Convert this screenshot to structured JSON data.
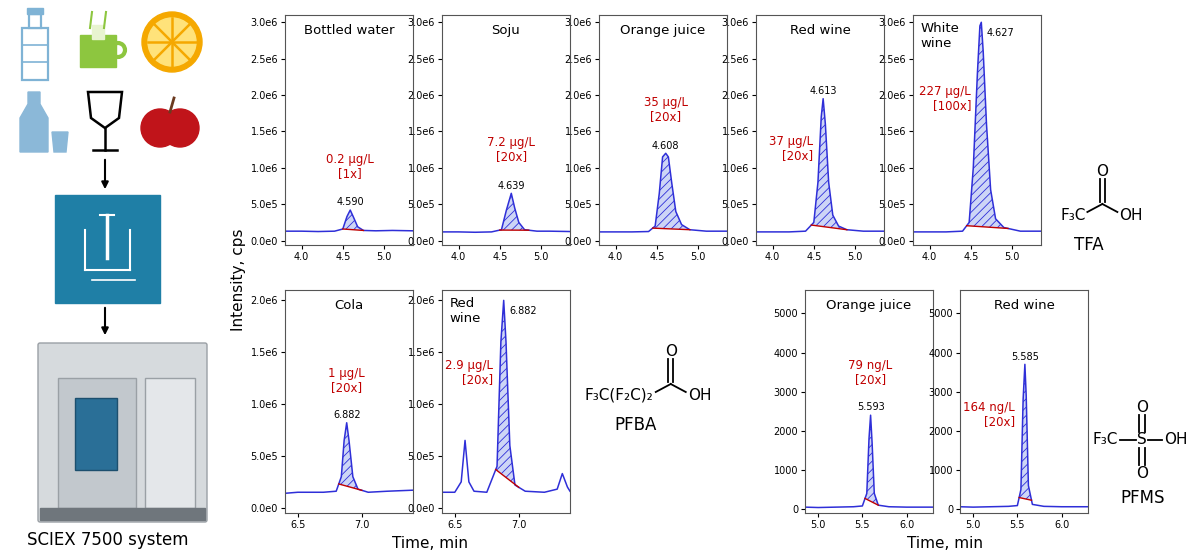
{
  "figure": {
    "ylabel": "Intensity, cps",
    "xlabels": [
      "Time, min",
      "Time, min"
    ],
    "system": "SCIEX 7500 system"
  },
  "compounds": [
    {
      "name": "TFA",
      "left": "F₃C",
      "oxo": [
        "O"
      ],
      "acid": "OH"
    },
    {
      "name": "PFBA",
      "left": "F₃C(F₂C)₂",
      "oxo": [
        "O"
      ],
      "acid": "OH"
    },
    {
      "name": "PFMS",
      "left": "F₃C",
      "center": "S",
      "oxo": [
        "O",
        "O"
      ],
      "acid": "OH"
    }
  ],
  "chart_data": [
    {
      "type": "line",
      "title": "Bottled water",
      "annotation": "0.2 µg/L",
      "factor": "[1x]",
      "peak_label": "4.590",
      "color": "#2f2fd8",
      "x": [
        3.8,
        4.0,
        4.2,
        4.4,
        4.5,
        4.55,
        4.59,
        4.63,
        4.68,
        4.75,
        4.9,
        5.1,
        5.35
      ],
      "values": [
        130000,
        130000,
        125000,
        130000,
        160000,
        330000,
        420000,
        320000,
        190000,
        140000,
        135000,
        140000,
        135000
      ],
      "integration": [
        4.5,
        4.75
      ],
      "xlim": [
        3.8,
        5.35
      ],
      "xticks": [
        4.0,
        4.5,
        5.0
      ],
      "ylim": [
        -60000,
        3100000
      ],
      "yticks": [
        {
          "value": 0,
          "label": "0.0e0"
        },
        {
          "value": 500000,
          "label": "5.0e5"
        },
        {
          "value": 1000000,
          "label": "1.0e6"
        },
        {
          "value": 1500000,
          "label": "1.5e6"
        },
        {
          "value": 2000000,
          "label": "2.0e6"
        },
        {
          "value": 2500000,
          "label": "2.5e6"
        },
        {
          "value": 3000000,
          "label": "3.0e6"
        }
      ]
    },
    {
      "type": "line",
      "title": "Soju",
      "annotation": "7.2 µg/L",
      "factor": "[20x]",
      "peak_label": "4.639",
      "color": "#2f2fd8",
      "x": [
        3.8,
        4.0,
        4.2,
        4.4,
        4.52,
        4.58,
        4.639,
        4.68,
        4.73,
        4.8,
        4.95,
        5.1,
        5.35
      ],
      "values": [
        120000,
        120000,
        115000,
        120000,
        150000,
        420000,
        650000,
        450000,
        250000,
        150000,
        130000,
        130000,
        125000
      ],
      "integration": [
        4.5,
        4.85
      ],
      "xlim": [
        3.8,
        5.35
      ],
      "xticks": [
        4.0,
        4.5,
        5.0
      ],
      "ylim": [
        -60000,
        3100000
      ],
      "yticks": [
        {
          "value": 0,
          "label": "0.0e0"
        },
        {
          "value": 500000,
          "label": "5.0e5"
        },
        {
          "value": 1000000,
          "label": "1.0e6"
        },
        {
          "value": 1500000,
          "label": "1.5e6"
        },
        {
          "value": 2000000,
          "label": "2.0e6"
        },
        {
          "value": 2500000,
          "label": "2.5e6"
        },
        {
          "value": 3000000,
          "label": "3.0e6"
        }
      ]
    },
    {
      "type": "line",
      "title": "Orange juice",
      "annotation": "35 µg/L",
      "factor": "[20x]",
      "peak_label": "4.608",
      "color": "#2f2fd8",
      "x": [
        3.8,
        4.0,
        4.2,
        4.4,
        4.48,
        4.53,
        4.57,
        4.608,
        4.64,
        4.68,
        4.73,
        4.8,
        4.9,
        5.1,
        5.35
      ],
      "values": [
        120000,
        120000,
        120000,
        125000,
        200000,
        650000,
        1150000,
        1200000,
        1150000,
        800000,
        400000,
        220000,
        150000,
        130000,
        130000
      ],
      "integration": [
        4.45,
        4.9
      ],
      "xlim": [
        3.8,
        5.35
      ],
      "xticks": [
        4.0,
        4.5,
        5.0
      ],
      "ylim": [
        -60000,
        3100000
      ],
      "yticks": [
        {
          "value": 0,
          "label": "0.0e0"
        },
        {
          "value": 500000,
          "label": "5.0e5"
        },
        {
          "value": 1000000,
          "label": "1.0e6"
        },
        {
          "value": 1500000,
          "label": "1.5e6"
        },
        {
          "value": 2000000,
          "label": "2.0e6"
        },
        {
          "value": 2500000,
          "label": "2.5e6"
        },
        {
          "value": 3000000,
          "label": "3.0e6"
        }
      ]
    },
    {
      "type": "line",
      "title": "Red wine",
      "annotation": "37 µg/L",
      "factor": "[20x]",
      "peak_label": "4.613",
      "color": "#2f2fd8",
      "x": [
        3.8,
        4.0,
        4.2,
        4.4,
        4.5,
        4.55,
        4.59,
        4.613,
        4.64,
        4.68,
        4.73,
        4.8,
        4.9,
        5.1,
        5.35
      ],
      "values": [
        120000,
        120000,
        120000,
        130000,
        250000,
        800000,
        1700000,
        1950000,
        1600000,
        800000,
        350000,
        200000,
        150000,
        130000,
        130000
      ],
      "integration": [
        4.47,
        4.9
      ],
      "xlim": [
        3.8,
        5.35
      ],
      "xticks": [
        4.0,
        4.5,
        5.0
      ],
      "ylim": [
        -60000,
        3100000
      ],
      "yticks": [
        {
          "value": 0,
          "label": "0.0e0"
        },
        {
          "value": 500000,
          "label": "5.0e5"
        },
        {
          "value": 1000000,
          "label": "1.0e6"
        },
        {
          "value": 1500000,
          "label": "1.5e6"
        },
        {
          "value": 2000000,
          "label": "2.0e6"
        },
        {
          "value": 2500000,
          "label": "2.5e6"
        },
        {
          "value": 3000000,
          "label": "3.0e6"
        }
      ]
    },
    {
      "type": "line",
      "title": "White\nwine",
      "annotation": "227 µg/L",
      "factor": "[100x]",
      "peak_label": "4.627",
      "color": "#2f2fd8",
      "x": [
        3.8,
        4.0,
        4.2,
        4.4,
        4.48,
        4.53,
        4.58,
        4.61,
        4.627,
        4.65,
        4.69,
        4.74,
        4.8,
        4.9,
        5.1,
        5.35
      ],
      "values": [
        120000,
        120000,
        120000,
        130000,
        250000,
        1000000,
        2300000,
        2950000,
        3000000,
        2600000,
        1600000,
        700000,
        300000,
        180000,
        130000,
        130000
      ],
      "integration": [
        4.45,
        4.95
      ],
      "xlim": [
        3.8,
        5.35
      ],
      "xticks": [
        4.0,
        4.5,
        5.0
      ],
      "ylim": [
        -60000,
        3100000
      ],
      "yticks": [
        {
          "value": 0,
          "label": "0.0e0"
        },
        {
          "value": 500000,
          "label": "5.0e5"
        },
        {
          "value": 1000000,
          "label": "1.0e6"
        },
        {
          "value": 1500000,
          "label": "1.5e6"
        },
        {
          "value": 2000000,
          "label": "2.0e6"
        },
        {
          "value": 2500000,
          "label": "2.5e6"
        },
        {
          "value": 3000000,
          "label": "3.0e6"
        }
      ]
    },
    {
      "type": "line",
      "title": "Cola",
      "annotation": "1 µg/L",
      "factor": "[20x]",
      "peak_label": "6.882",
      "color": "#2f2fd8",
      "x": [
        6.4,
        6.5,
        6.6,
        6.7,
        6.8,
        6.84,
        6.862,
        6.882,
        6.9,
        6.93,
        6.97,
        7.05,
        7.2,
        7.4
      ],
      "values": [
        140000,
        150000,
        150000,
        150000,
        160000,
        300000,
        650000,
        820000,
        650000,
        300000,
        180000,
        150000,
        160000,
        170000
      ],
      "integration": [
        6.82,
        7.0
      ],
      "xlim": [
        6.4,
        7.4
      ],
      "xticks": [
        6.5,
        7.0
      ],
      "ylim": [
        -50000,
        2100000
      ],
      "yticks": [
        {
          "value": 0,
          "label": "0.0e0"
        },
        {
          "value": 500000,
          "label": "5.0e5"
        },
        {
          "value": 1000000,
          "label": "1.0e6"
        },
        {
          "value": 1500000,
          "label": "1.5e6"
        },
        {
          "value": 2000000,
          "label": "2.0e6"
        }
      ]
    },
    {
      "type": "line",
      "title": "Red\nwine",
      "annotation": "2.9 µg/L",
      "factor": "[20x]",
      "peak_label": "6.882",
      "color": "#2f2fd8",
      "x": [
        6.4,
        6.5,
        6.55,
        6.58,
        6.61,
        6.65,
        6.75,
        6.83,
        6.86,
        6.882,
        6.9,
        6.93,
        6.97,
        7.05,
        7.2,
        7.3,
        7.34,
        7.38,
        7.4
      ],
      "values": [
        150000,
        150000,
        250000,
        650000,
        250000,
        160000,
        150000,
        400000,
        1600000,
        2000000,
        1600000,
        600000,
        220000,
        160000,
        150000,
        180000,
        330000,
        200000,
        160000
      ],
      "integration": [
        6.82,
        7.0
      ],
      "xlim": [
        6.4,
        7.4
      ],
      "xticks": [
        6.5,
        7.0
      ],
      "ylim": [
        -50000,
        2100000
      ],
      "yticks": [
        {
          "value": 0,
          "label": "0.0e0"
        },
        {
          "value": 500000,
          "label": "5.0e5"
        },
        {
          "value": 1000000,
          "label": "1.0e6"
        },
        {
          "value": 1500000,
          "label": "1.5e6"
        },
        {
          "value": 2000000,
          "label": "2.0e6"
        }
      ]
    },
    {
      "type": "line",
      "title": "Orange juice",
      "annotation": "79 ng/L",
      "factor": "[20x]",
      "peak_label": "5.593",
      "color": "#2f2fd8",
      "x": [
        4.85,
        5.0,
        5.2,
        5.4,
        5.5,
        5.55,
        5.575,
        5.593,
        5.61,
        5.635,
        5.68,
        5.8,
        6.0,
        6.3
      ],
      "values": [
        50,
        40,
        50,
        60,
        80,
        400,
        1800,
        2400,
        1700,
        400,
        100,
        60,
        50,
        50
      ],
      "integration": [
        5.53,
        5.68
      ],
      "xlim": [
        4.85,
        6.3
      ],
      "xticks": [
        5.0,
        5.5,
        6.0
      ],
      "ylim": [
        -100,
        5600
      ],
      "yticks": [
        0,
        1000,
        2000,
        3000,
        4000,
        5000
      ]
    },
    {
      "type": "line",
      "title": "Red wine",
      "annotation": "164 ng/L",
      "factor": "[20x]",
      "peak_label": "5.585",
      "color": "#2f2fd8",
      "x": [
        4.85,
        5.0,
        5.2,
        5.4,
        5.5,
        5.54,
        5.565,
        5.585,
        5.6,
        5.625,
        5.67,
        5.8,
        6.0,
        6.3
      ],
      "values": [
        60,
        50,
        60,
        70,
        90,
        500,
        2800,
        3700,
        2900,
        600,
        120,
        70,
        60,
        60
      ],
      "integration": [
        5.52,
        5.66
      ],
      "xlim": [
        4.85,
        6.3
      ],
      "xticks": [
        5.0,
        5.5,
        6.0
      ],
      "ylim": [
        -100,
        5600
      ],
      "yticks": [
        0,
        1000,
        2000,
        3000,
        4000,
        5000
      ]
    }
  ]
}
